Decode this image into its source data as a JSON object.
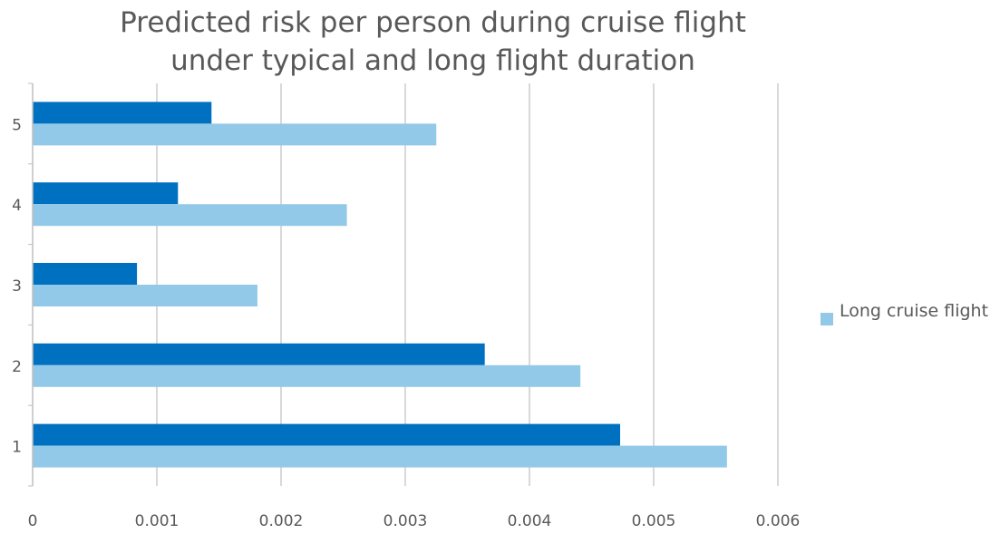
{
  "chart_data": {
    "type": "bar",
    "orientation": "horizontal",
    "title": [
      "Predicted risk per person during cruise flight",
      "under typical and long flight duration"
    ],
    "categories": [
      "1",
      "2",
      "3",
      "4",
      "5"
    ],
    "series": [
      {
        "values": [
          0.00473,
          0.00364,
          0.00084,
          0.00117,
          0.00144
        ],
        "color": "#0070C0"
      },
      {
        "name": "Long cruise flight",
        "values": [
          0.00559,
          0.00441,
          0.00181,
          0.00253,
          0.00325
        ],
        "color": "#93C9E8"
      }
    ],
    "xlim": [
      0,
      0.006
    ],
    "xticks": [
      "0",
      "0.001",
      "0.002",
      "0.003",
      "0.004",
      "0.005",
      "0.006"
    ],
    "grid": true,
    "legend": {
      "position": "right",
      "entries": [
        "Long cruise flight"
      ]
    }
  }
}
